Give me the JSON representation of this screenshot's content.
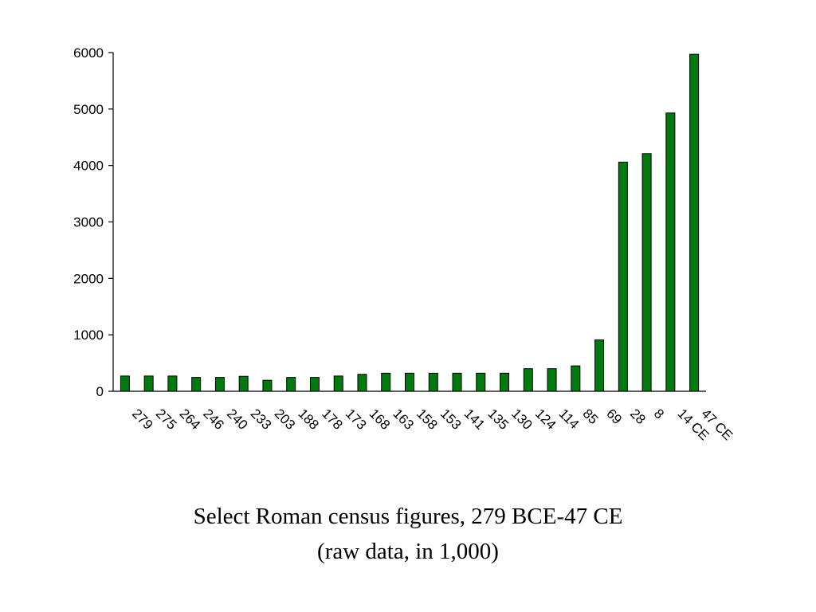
{
  "chart_data": {
    "type": "bar",
    "title": "Select Roman census figures, 279 BCE-47 CE",
    "subtitle": "(raw data, in 1,000)",
    "xlabel": "",
    "ylabel": "",
    "ylim": [
      0,
      6000
    ],
    "yticks": [
      0,
      1000,
      2000,
      3000,
      4000,
      5000,
      6000
    ],
    "grid": false,
    "bar_color": "#007a0f",
    "categories": [
      "279",
      "275",
      "264",
      "246",
      "240",
      "233",
      "203",
      "188",
      "178",
      "173",
      "168",
      "163",
      "158",
      "153",
      "141",
      "135",
      "130",
      "124",
      "114",
      "85",
      "69",
      "28",
      "8",
      "14 CE",
      "47 CE"
    ],
    "values": [
      270,
      270,
      270,
      245,
      245,
      265,
      195,
      245,
      245,
      270,
      300,
      320,
      320,
      320,
      320,
      320,
      320,
      400,
      400,
      450,
      910,
      4060,
      4210,
      4930,
      5970
    ]
  }
}
